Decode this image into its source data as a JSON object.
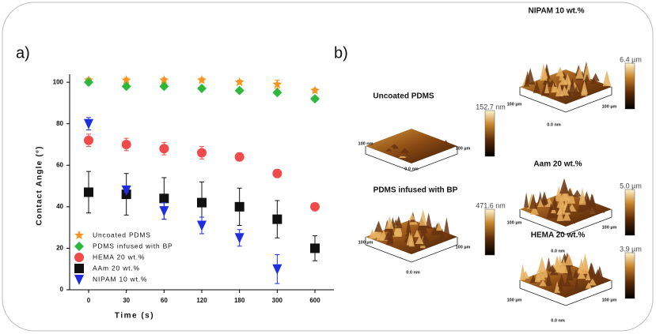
{
  "chart_data": {
    "type": "scatter",
    "x_label": "Time (s)",
    "y_label": "Contact Angle (°)",
    "categories": [
      "0",
      "30",
      "60",
      "120",
      "180",
      "300",
      "600"
    ],
    "ylim": [
      0,
      105
    ],
    "yticks": [
      0,
      20,
      40,
      60,
      80,
      100
    ],
    "legend": "lower left",
    "series": [
      {
        "name": "Uncoated PDMS",
        "color": "#f7941d",
        "marker": "star",
        "values": [
          101,
          101,
          101,
          101,
          100,
          99,
          96
        ],
        "errors": [
          1,
          1,
          1,
          1,
          1,
          2,
          1
        ]
      },
      {
        "name": "PDMS infused with BP",
        "color": "#2db83d",
        "marker": "diamond",
        "values": [
          100,
          98,
          98,
          97,
          96,
          95,
          92
        ],
        "errors": [
          1,
          1,
          1,
          1,
          1,
          1,
          1
        ]
      },
      {
        "name": "HEMA 20 wt.%",
        "color": "#ef4b4b",
        "marker": "circle",
        "values": [
          72,
          70,
          68,
          66,
          64,
          56,
          40
        ],
        "errors": [
          3,
          3,
          3,
          3,
          2,
          2,
          0
        ]
      },
      {
        "name": "AAm 20 wt.%",
        "color": "#111111",
        "marker": "square",
        "values": [
          47,
          46,
          44,
          42,
          40,
          34,
          20
        ],
        "errors": [
          10,
          10,
          10,
          10,
          9,
          9,
          6
        ]
      },
      {
        "name": "NIPAM 10 wt.%",
        "color": "#1f2fe0",
        "marker": "triangle-down",
        "values": [
          80,
          48,
          38,
          31,
          25,
          10,
          null
        ],
        "errors": [
          3,
          1,
          4,
          4,
          4,
          7,
          null
        ]
      }
    ]
  },
  "panel_labels": [
    "a)",
    "b)"
  ],
  "afm_images": [
    {
      "title": "NIPAM 10 wt.%",
      "scale_max": "6.4 µm",
      "axis_labels": [
        "100 µm",
        "100 µm"
      ],
      "zero_label": "0.0 nm"
    },
    {
      "title": "Uncoated PDMS",
      "scale_max": "152.7 nm",
      "axis_labels": [
        "100 nm",
        "100 µm"
      ],
      "zero_label": "0.0 nm"
    },
    {
      "title": "PDMS infused with BP",
      "scale_max": "471.6 nm",
      "axis_labels": [
        "100 µm",
        "100 µm"
      ],
      "zero_label": "0.0 nm"
    },
    {
      "title": "Aam 20 wt.%",
      "scale_max": "5.0 µm",
      "axis_labels": [
        "100 µm",
        "100 µm"
      ],
      "zero_label": "0.0 nm"
    },
    {
      "title": "HEMA 20 wt.%",
      "scale_max": "3.9 µm",
      "axis_labels": [
        "100 µm",
        "100 µm"
      ],
      "zero_label": "0.0 nm"
    }
  ]
}
